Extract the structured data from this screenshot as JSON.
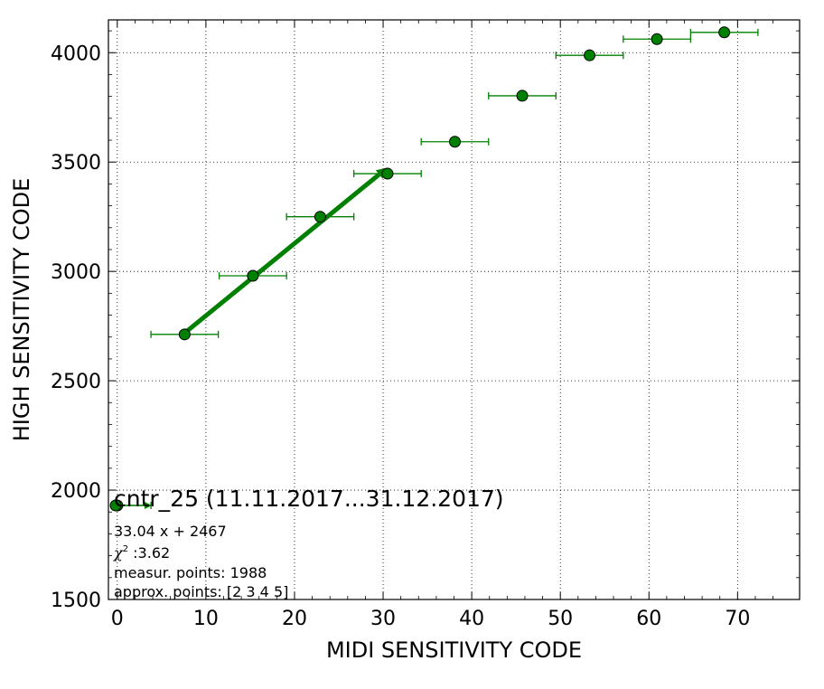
{
  "chart_data": {
    "type": "scatter",
    "title": "",
    "xlabel": "MIDI SENSITIVITY CODE",
    "ylabel": "HIGH SENSITIVITY CODE",
    "xlim": [
      -1,
      77
    ],
    "ylim": [
      1500,
      4150
    ],
    "x_ticks": [
      0,
      10,
      20,
      30,
      40,
      50,
      60,
      70
    ],
    "y_ticks": [
      1500,
      2000,
      2500,
      3000,
      3500,
      4000
    ],
    "grid": true,
    "points": {
      "x": [
        0,
        7.6,
        15.3,
        22.9,
        30.5,
        38.1,
        45.7,
        53.3,
        60.9,
        68.5
      ],
      "y": [
        1930,
        2712,
        2980,
        3250,
        3447,
        3593,
        3803,
        3988,
        4062,
        4093
      ],
      "x_err_left": [
        0,
        3.8,
        3.8,
        3.8,
        3.8,
        3.8,
        3.8,
        3.8,
        3.8,
        3.8
      ],
      "x_err_right": [
        3.8,
        3.8,
        3.8,
        3.8,
        3.8,
        3.8,
        3.8,
        3.8,
        3.8,
        3.8
      ],
      "color": "#008000"
    },
    "fit_line": {
      "slope": 33.04,
      "intercept": 2467,
      "x_range": [
        7.6,
        30.5
      ],
      "color": "#008000"
    },
    "legend": {
      "placement": "lower-left",
      "title": "cntr_25 (11.11.2017...31.12.2017)",
      "formula": "33.04 x + 2467",
      "chi2_symbol": "χ",
      "chi2_exp": "2",
      "chi2_value": " :3.62",
      "measur_points": "measur. points: 1988",
      "approx_points": "approx. points: [2 3 4 5]"
    }
  }
}
